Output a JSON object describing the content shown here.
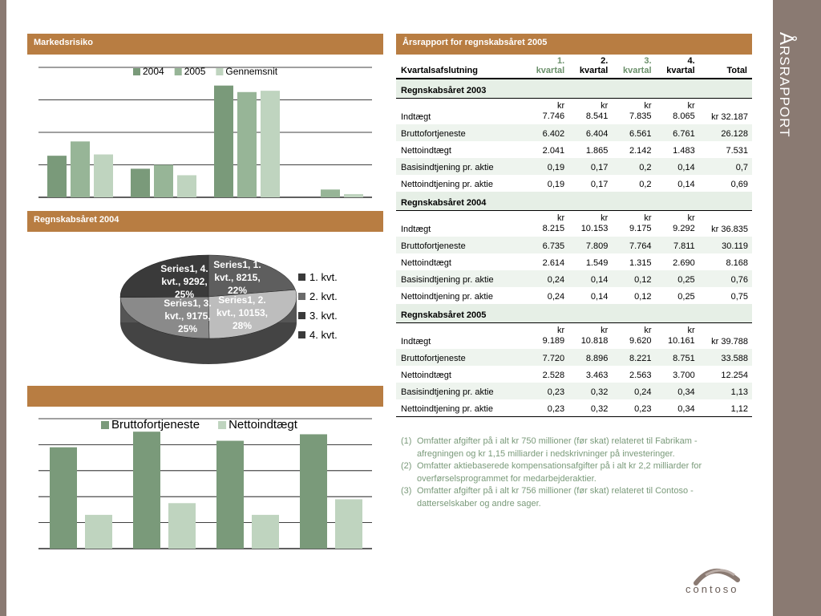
{
  "side_title": "Årsrapport",
  "headers": {
    "market": "Markedsrisiko",
    "report": "Årsrapport for regnskabsåret 2005",
    "pie": "Regnskabsåret 2004",
    "third": ""
  },
  "colors": {
    "accent": "#b87d42",
    "sidebar": "#8a7a72",
    "g2004": "#7a9a7a",
    "g2005": "#97b597",
    "gavg": "#bfd4bf"
  },
  "table": {
    "header": {
      "label": "Kvartalsafslutning",
      "q1a": "1.",
      "q1b": "kvartal",
      "q2a": "2.",
      "q2b": "kvartal",
      "q3a": "3.",
      "q3b": "kvartal",
      "q4a": "4.",
      "q4b": "kvartal",
      "total": "Total"
    },
    "sections": [
      {
        "title": "Regnskabsåret 2003",
        "rows": [
          {
            "label": "Indtægt",
            "q1": "kr 7.746",
            "q2": "kr 8.541",
            "q3": "kr 7.835",
            "q4": "kr 8.065",
            "total": "kr 32.187"
          },
          {
            "label": "Bruttofortjeneste",
            "q1": "6.402",
            "q2": "6.404",
            "q3": "6.561",
            "q4": "6.761",
            "total": "26.128"
          },
          {
            "label": "Nettoindtægt",
            "q1": "2.041",
            "q2": "1.865",
            "q3": "2.142",
            "q4": "1.483",
            "total": "7.531"
          },
          {
            "label": "Basisindtjening pr. aktie",
            "q1": "0,19",
            "q2": "0,17",
            "q3": "0,2",
            "q4": "0,14",
            "total": "0,7"
          },
          {
            "label": "Nettoindtjening pr. aktie",
            "q1": "0,19",
            "q2": "0,17",
            "q3": "0,2",
            "q4": "0,14",
            "total": "0,69"
          }
        ]
      },
      {
        "title": "Regnskabsåret 2004",
        "rows": [
          {
            "label": "Indtægt",
            "q1": "kr 8.215",
            "q2": "kr 10.153",
            "q3": "kr 9.175",
            "q4": "kr 9.292",
            "total": "kr 36.835"
          },
          {
            "label": "Bruttofortjeneste",
            "q1": "6.735",
            "q2": "7.809",
            "q3": "7.764",
            "q4": "7.811",
            "total": "30.119"
          },
          {
            "label": "Nettoindtægt",
            "q1": "2.614",
            "q2": "1.549",
            "q3": "1.315",
            "q4": "2.690",
            "total": "8.168"
          },
          {
            "label": "Basisindtjening pr. aktie",
            "q1": "0,24",
            "q2": "0,14",
            "q3": "0,12",
            "q4": "0,25",
            "total": "0,76"
          },
          {
            "label": "Nettoindtjening pr. aktie",
            "q1": "0,24",
            "q2": "0,14",
            "q3": "0,12",
            "q4": "0,25",
            "total": "0,75"
          }
        ]
      },
      {
        "title": "Regnskabsåret 2005",
        "rows": [
          {
            "label": "Indtægt",
            "q1": "kr 9.189",
            "q2": "kr 10.818",
            "q3": "kr 9.620",
            "q4": "kr 10.161",
            "total": "kr 39.788"
          },
          {
            "label": "Bruttofortjeneste",
            "q1": "7.720",
            "q2": "8.896",
            "q3": "8.221",
            "q4": "8.751",
            "total": "33.588"
          },
          {
            "label": "Nettoindtægt",
            "q1": "2.528",
            "q2": "3.463",
            "q3": "2.563",
            "q4": "3.700",
            "total": "12.254"
          },
          {
            "label": "Basisindtjening pr. aktie",
            "q1": "0,23",
            "q2": "0,32",
            "q3": "0,24",
            "q4": "0,34",
            "total": "1,13"
          },
          {
            "label": "Nettoindtjening pr. aktie",
            "q1": "0,23",
            "q2": "0,32",
            "q3": "0,23",
            "q4": "0,34",
            "total": "1,12"
          }
        ]
      }
    ]
  },
  "notes": [
    {
      "key": "(1)",
      "text": "Omfatter afgifter på i alt kr 750 millioner (før skat) relateret til Fabrikam - afregningen og kr 1,15 milliarder i nedskrivninger på investeringer."
    },
    {
      "key": "(2)",
      "text": "Omfatter aktiebaserede kompensationsafgifter på i alt kr 2,2 milliarder for overførselsprogrammet for medarbejderaktier."
    },
    {
      "key": "(3)",
      "text": "Omfatter afgifter på i alt kr 756 millioner (før skat) relateret til Contoso - datterselskaber og andre sager."
    }
  ],
  "logo_text": "contoso",
  "chart_data": [
    {
      "type": "bar",
      "categories": [
        "",
        "",
        "",
        ""
      ],
      "series": [
        {
          "name": "2004",
          "values": [
            3.2,
            2.2,
            8.6,
            0
          ]
        },
        {
          "name": "2005",
          "values": [
            4.3,
            2.5,
            8.1,
            0.6
          ]
        },
        {
          "name": "Gennemsnit",
          "values": [
            3.3,
            1.7,
            8.2,
            0.25
          ]
        }
      ],
      "ylim": [
        0,
        10
      ],
      "grid": true,
      "legend": "top-right"
    },
    {
      "type": "pie",
      "categories": [
        "1. kvt.",
        "2. kvt.",
        "3. kvt.",
        "4. kvt."
      ],
      "values": [
        8215,
        10153,
        9175,
        9292
      ],
      "data_labels": [
        "Series1, 1. kvt., 8215, 22%",
        "Series1, 2. kvt., 10153, 28%",
        "Series1, 3. kvt., 9175, 25%",
        "Series1, 4. kvt., 9292, 25%"
      ],
      "legend": "right"
    },
    {
      "type": "bar",
      "categories": [
        "",
        "",
        "",
        ""
      ],
      "series": [
        {
          "name": "Bruttofortjeneste",
          "values": [
            7.8,
            9.0,
            8.3,
            8.8
          ]
        },
        {
          "name": "Nettoindtægt",
          "values": [
            2.6,
            3.5,
            2.6,
            3.8
          ]
        }
      ],
      "ylim": [
        0,
        10
      ],
      "grid": true,
      "legend": "top"
    }
  ]
}
